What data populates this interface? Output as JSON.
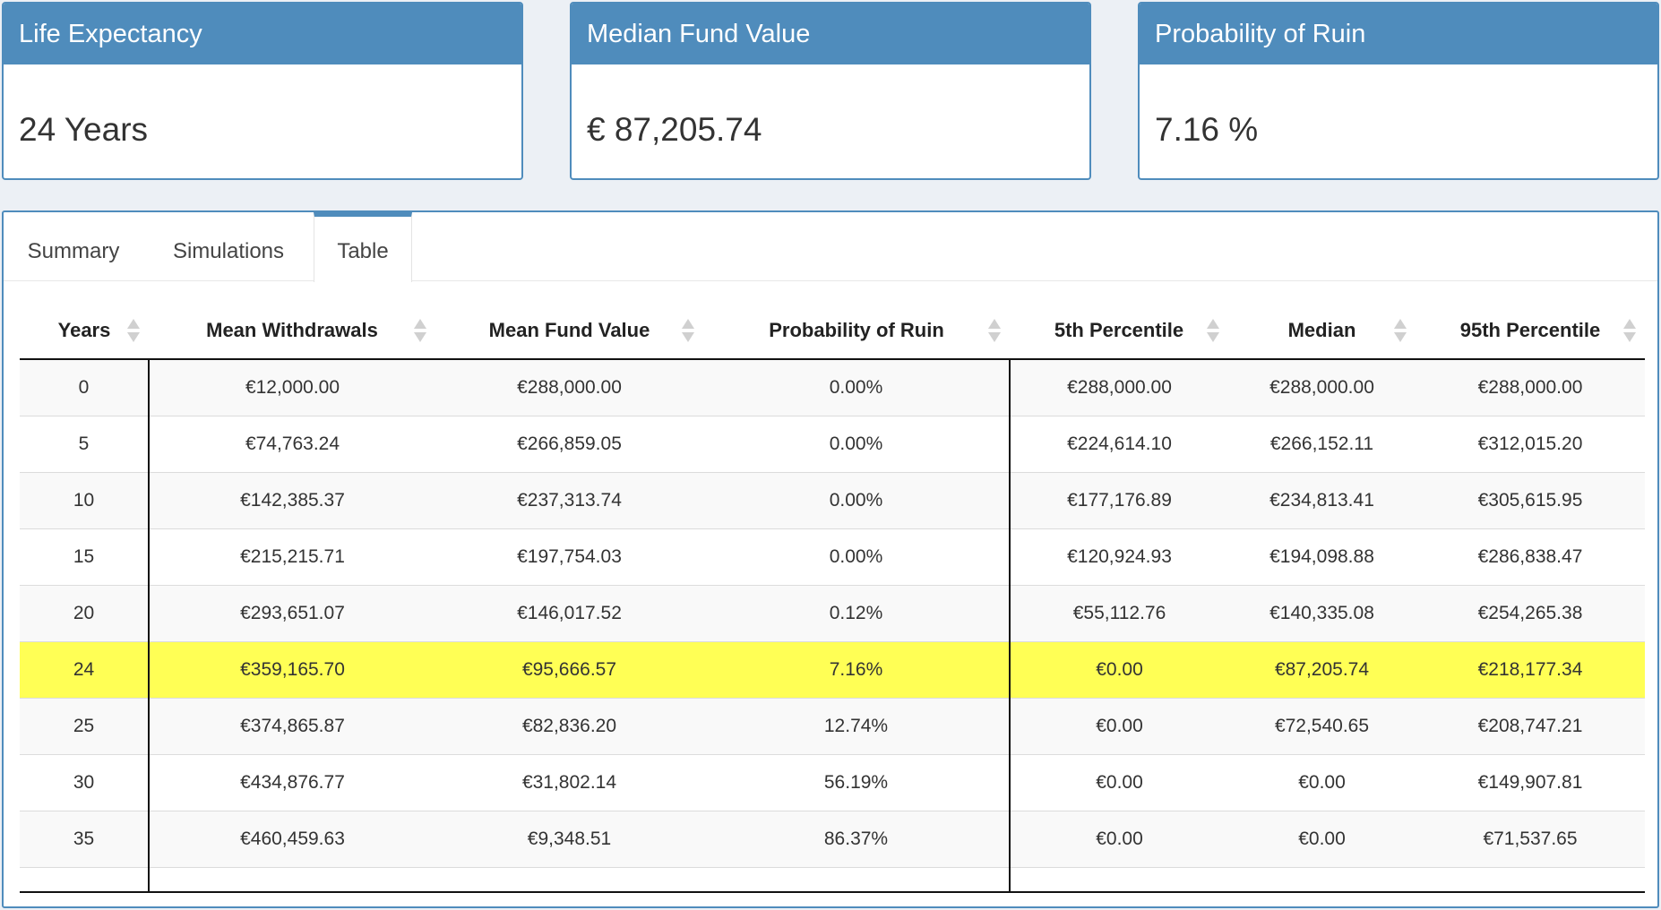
{
  "kpis": [
    {
      "title": "Life Expectancy",
      "value": "24 Years"
    },
    {
      "title": "Median Fund Value",
      "value": "€ 87,205.74"
    },
    {
      "title": "Probability of Ruin",
      "value": "7.16 %"
    }
  ],
  "tabs": [
    "Summary",
    "Simulations",
    "Table"
  ],
  "active_tab": "Table",
  "table": {
    "headers": [
      "Years",
      "Mean Withdrawals",
      "Mean Fund Value",
      "Probability of Ruin",
      "5th Percentile",
      "Median",
      "95th Percentile"
    ],
    "rows": [
      [
        "0",
        "€12,000.00",
        "€288,000.00",
        "0.00%",
        "€288,000.00",
        "€288,000.00",
        "€288,000.00"
      ],
      [
        "5",
        "€74,763.24",
        "€266,859.05",
        "0.00%",
        "€224,614.10",
        "€266,152.11",
        "€312,015.20"
      ],
      [
        "10",
        "€142,385.37",
        "€237,313.74",
        "0.00%",
        "€177,176.89",
        "€234,813.41",
        "€305,615.95"
      ],
      [
        "15",
        "€215,215.71",
        "€197,754.03",
        "0.00%",
        "€120,924.93",
        "€194,098.88",
        "€286,838.47"
      ],
      [
        "20",
        "€293,651.07",
        "€146,017.52",
        "0.12%",
        "€55,112.76",
        "€140,335.08",
        "€254,265.38"
      ],
      [
        "24",
        "€359,165.70",
        "€95,666.57",
        "7.16%",
        "€0.00",
        "€87,205.74",
        "€218,177.34"
      ],
      [
        "25",
        "€374,865.87",
        "€82,836.20",
        "12.74%",
        "€0.00",
        "€72,540.65",
        "€208,747.21"
      ],
      [
        "30",
        "€434,876.77",
        "€31,802.14",
        "56.19%",
        "€0.00",
        "€0.00",
        "€149,907.81"
      ],
      [
        "35",
        "€460,459.63",
        "€9,348.51",
        "86.37%",
        "€0.00",
        "€0.00",
        "€71,537.65"
      ]
    ],
    "highlight_row_index": 5,
    "highlight_color": "#ffff55"
  },
  "colors": {
    "accent": "#4f8cbc",
    "background": "#ecf0f5"
  }
}
